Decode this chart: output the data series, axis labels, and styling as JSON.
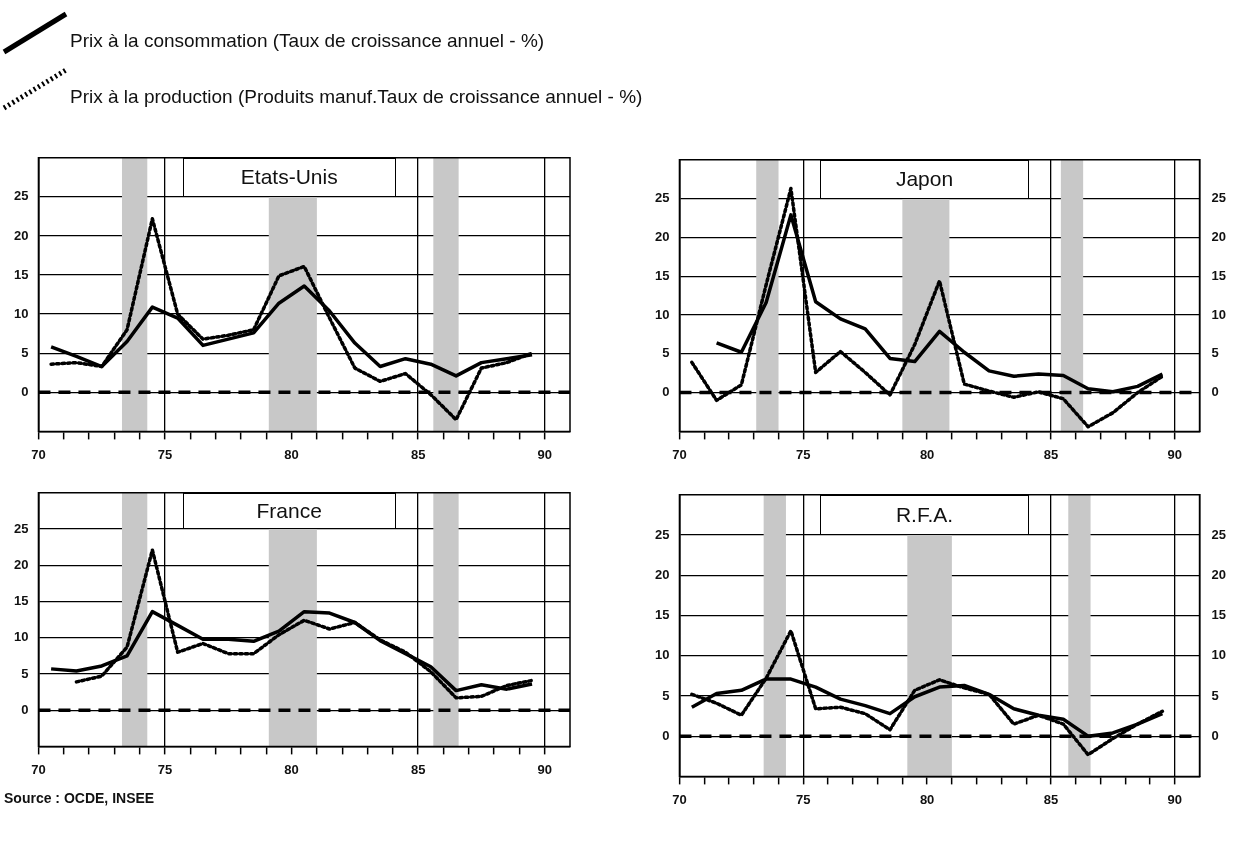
{
  "chart_data": [
    {
      "type": "line",
      "title": "Etats-Unis",
      "legend": "top",
      "grid": true,
      "x": [
        70.5,
        71.5,
        72.5,
        73.5,
        74.5,
        75.5,
        76.5,
        77.5,
        78.5,
        79.5,
        80.5,
        81.5,
        82.5,
        83.5,
        84.5,
        85.5,
        86.5,
        87.5,
        88.5,
        89.5
      ],
      "xlim": [
        70,
        91
      ],
      "xticks": [
        70,
        {
          "value": 71,
          "label": null
        },
        {
          "value": 72,
          "label": null
        },
        {
          "value": 73,
          "label": null
        },
        {
          "value": 74,
          "label": null
        },
        75,
        {
          "value": 76,
          "label": null
        },
        {
          "value": 77,
          "label": null
        },
        {
          "value": 78,
          "label": null
        },
        {
          "value": 79,
          "label": null
        },
        80,
        {
          "value": 81,
          "label": null
        },
        {
          "value": 82,
          "label": null
        },
        {
          "value": 83,
          "label": null
        },
        {
          "value": 84,
          "label": null
        },
        85,
        {
          "value": 86,
          "label": null
        },
        {
          "value": 87,
          "label": null
        },
        {
          "value": 88,
          "label": null
        },
        {
          "value": 89,
          "label": null
        },
        90
      ],
      "ylim": [
        -5,
        30
      ],
      "yticks": [
        0,
        5,
        10,
        15,
        20,
        25
      ],
      "ref_lines": [
        {
          "axis": "y",
          "value": 0,
          "color": "#000000",
          "line_style": "dashed"
        }
      ],
      "bands": [
        {
          "axis": "x",
          "from": 73.3,
          "to": 74.3,
          "color": "#c8c8c8"
        },
        {
          "axis": "x",
          "from": 79.1,
          "to": 81.0,
          "color": "#c8c8c8"
        },
        {
          "axis": "x",
          "from": 85.6,
          "to": 86.6,
          "color": "#c8c8c8"
        }
      ],
      "series": [
        {
          "name": "Prix à la consommation (Taux de croissance annuel - %)",
          "color": "#000000",
          "line_style": "solid",
          "values": [
            5.8,
            4.6,
            3.3,
            6.5,
            10.9,
            9.5,
            6.0,
            6.8,
            7.6,
            11.4,
            13.6,
            10.4,
            6.3,
            3.3,
            4.3,
            3.6,
            2.1,
            3.8,
            4.3,
            4.8
          ]
        },
        {
          "name": "Prix à la production (Produits manuf.Taux de croissance annuel - %)",
          "color": "#000000",
          "line_style": "dotted",
          "values": [
            3.6,
            3.8,
            3.3,
            8.0,
            22.2,
            10.0,
            6.8,
            7.3,
            8.0,
            14.9,
            16.1,
            9.5,
            3.1,
            1.4,
            2.4,
            -0.3,
            -3.5,
            3.1,
            3.8,
            5.0
          ]
        }
      ]
    },
    {
      "type": "line",
      "title": "Japon",
      "grid": true,
      "x": [
        70.5,
        71.5,
        72.5,
        73.5,
        74.5,
        75.5,
        76.5,
        77.5,
        78.5,
        79.5,
        80.5,
        81.5,
        82.5,
        83.5,
        84.5,
        85.5,
        86.5,
        87.5,
        88.5,
        89.5
      ],
      "xlim": [
        70,
        91
      ],
      "xticks": [
        70,
        {
          "value": 71,
          "label": null
        },
        {
          "value": 72,
          "label": null
        },
        {
          "value": 73,
          "label": null
        },
        {
          "value": 74,
          "label": null
        },
        75,
        {
          "value": 76,
          "label": null
        },
        {
          "value": 77,
          "label": null
        },
        {
          "value": 78,
          "label": null
        },
        {
          "value": 79,
          "label": null
        },
        80,
        {
          "value": 81,
          "label": null
        },
        {
          "value": 82,
          "label": null
        },
        {
          "value": 83,
          "label": null
        },
        {
          "value": 84,
          "label": null
        },
        85,
        {
          "value": 86,
          "label": null
        },
        {
          "value": 87,
          "label": null
        },
        {
          "value": 88,
          "label": null
        },
        {
          "value": 89,
          "label": null
        },
        90
      ],
      "ylim": [
        -5,
        30
      ],
      "yticks": [
        0,
        5,
        10,
        15,
        20,
        25
      ],
      "y2lim": [
        -5,
        30
      ],
      "y2ticks": [
        0,
        5,
        10,
        15,
        20,
        25
      ],
      "ref_lines": [
        {
          "axis": "y",
          "value": 0,
          "color": "#000000",
          "line_style": "dashed"
        }
      ],
      "bands": [
        {
          "axis": "x",
          "from": 73.1,
          "to": 74.0,
          "color": "#c8c8c8"
        },
        {
          "axis": "x",
          "from": 79.0,
          "to": 80.9,
          "color": "#c8c8c8"
        },
        {
          "axis": "x",
          "from": 85.4,
          "to": 86.3,
          "color": "#c8c8c8"
        }
      ],
      "series": [
        {
          "color": "#000000",
          "line_style": "solid",
          "values": [
            null,
            6.4,
            5.2,
            11.6,
            22.9,
            11.7,
            9.5,
            8.2,
            4.4,
            4.0,
            7.9,
            5.2,
            2.8,
            2.1,
            2.4,
            2.2,
            0.5,
            0.1,
            0.8,
            2.4
          ]
        },
        {
          "color": "#000000",
          "line_style": "dotted",
          "values": [
            3.9,
            -1.0,
            1.0,
            13.9,
            26.3,
            2.6,
            5.3,
            2.6,
            -0.3,
            6.2,
            14.4,
            1.1,
            0.2,
            -0.6,
            0.1,
            -0.8,
            -4.4,
            -2.6,
            0,
            2.1
          ]
        }
      ]
    },
    {
      "type": "line",
      "title": "France",
      "grid": true,
      "x": [
        70.5,
        71.5,
        72.5,
        73.5,
        74.5,
        75.5,
        76.5,
        77.5,
        78.5,
        79.5,
        80.5,
        81.5,
        82.5,
        83.5,
        84.5,
        85.5,
        86.5,
        87.5,
        88.5,
        89.5
      ],
      "xlim": [
        70,
        91
      ],
      "xticks": [
        70,
        {
          "value": 71,
          "label": null
        },
        {
          "value": 72,
          "label": null
        },
        {
          "value": 73,
          "label": null
        },
        {
          "value": 74,
          "label": null
        },
        75,
        {
          "value": 76,
          "label": null
        },
        {
          "value": 77,
          "label": null
        },
        {
          "value": 78,
          "label": null
        },
        {
          "value": 79,
          "label": null
        },
        80,
        {
          "value": 81,
          "label": null
        },
        {
          "value": 82,
          "label": null
        },
        {
          "value": 83,
          "label": null
        },
        {
          "value": 84,
          "label": null
        },
        85,
        {
          "value": 86,
          "label": null
        },
        {
          "value": 87,
          "label": null
        },
        {
          "value": 88,
          "label": null
        },
        {
          "value": 89,
          "label": null
        },
        90
      ],
      "ylim": [
        -5,
        30
      ],
      "yticks": [
        0,
        5,
        10,
        15,
        20,
        25
      ],
      "ref_lines": [
        {
          "axis": "y",
          "value": 0,
          "color": "#000000",
          "line_style": "dashed"
        }
      ],
      "bands": [
        {
          "axis": "x",
          "from": 73.3,
          "to": 74.3,
          "color": "#c8c8c8"
        },
        {
          "axis": "x",
          "from": 79.1,
          "to": 81.0,
          "color": "#c8c8c8"
        },
        {
          "axis": "x",
          "from": 85.6,
          "to": 86.6,
          "color": "#c8c8c8"
        }
      ],
      "annotations": [
        "Source : OCDE, INSEE"
      ],
      "series": [
        {
          "color": "#000000",
          "line_style": "solid",
          "values": [
            5.7,
            5.4,
            6.1,
            7.5,
            13.6,
            11.7,
            9.8,
            9.8,
            9.5,
            10.9,
            13.6,
            13.4,
            12.1,
            9.6,
            7.8,
            6.0,
            2.7,
            3.5,
            2.9,
            3.6
          ]
        },
        {
          "color": "#000000",
          "line_style": "dotted",
          "values": [
            null,
            3.9,
            4.7,
            8.7,
            22.1,
            8.0,
            9.2,
            7.8,
            7.8,
            10.4,
            12.4,
            11.2,
            12.1,
            9.7,
            8.0,
            5.3,
            1.7,
            1.9,
            3.4,
            4.1
          ]
        }
      ]
    },
    {
      "type": "line",
      "title": "R.F.A.",
      "grid": true,
      "x": [
        70.5,
        71.5,
        72.5,
        73.5,
        74.5,
        75.5,
        76.5,
        77.5,
        78.5,
        79.5,
        80.5,
        81.5,
        82.5,
        83.5,
        84.5,
        85.5,
        86.5,
        87.5,
        88.5,
        89.5
      ],
      "xlim": [
        70,
        91
      ],
      "xticks": [
        70,
        {
          "value": 71,
          "label": null
        },
        {
          "value": 72,
          "label": null
        },
        {
          "value": 73,
          "label": null
        },
        {
          "value": 74,
          "label": null
        },
        75,
        {
          "value": 76,
          "label": null
        },
        {
          "value": 77,
          "label": null
        },
        {
          "value": 78,
          "label": null
        },
        {
          "value": 79,
          "label": null
        },
        80,
        {
          "value": 81,
          "label": null
        },
        {
          "value": 82,
          "label": null
        },
        {
          "value": 83,
          "label": null
        },
        {
          "value": 84,
          "label": null
        },
        85,
        {
          "value": 86,
          "label": null
        },
        {
          "value": 87,
          "label": null
        },
        {
          "value": 88,
          "label": null
        },
        {
          "value": 89,
          "label": null
        },
        90
      ],
      "ylim": [
        -5,
        30
      ],
      "yticks": [
        0,
        5,
        10,
        15,
        20,
        25
      ],
      "y2lim": [
        -5,
        30
      ],
      "y2ticks": [
        0,
        5,
        10,
        15,
        20,
        25
      ],
      "ref_lines": [
        {
          "axis": "y",
          "value": 0,
          "color": "#000000",
          "line_style": "dashed"
        }
      ],
      "bands": [
        {
          "axis": "x",
          "from": 73.4,
          "to": 74.3,
          "color": "#c8c8c8"
        },
        {
          "axis": "x",
          "from": 79.2,
          "to": 81.0,
          "color": "#c8c8c8"
        },
        {
          "axis": "x",
          "from": 85.7,
          "to": 86.6,
          "color": "#c8c8c8"
        }
      ],
      "series": [
        {
          "color": "#000000",
          "line_style": "solid",
          "values": [
            3.6,
            5.3,
            5.7,
            7.1,
            7.1,
            6.1,
            4.6,
            3.8,
            2.8,
            4.9,
            6.1,
            6.3,
            5.2,
            3.4,
            2.6,
            2.1,
            0,
            0.4,
            1.5,
            2.8
          ]
        },
        {
          "color": "#000000",
          "line_style": "dotted",
          "values": [
            5.2,
            4.1,
            2.6,
            7.2,
            13.1,
            3.4,
            3.6,
            2.8,
            0.8,
            5.7,
            7.0,
            6.0,
            5.2,
            1.5,
            2.6,
            1.5,
            -2.3,
            -0.3,
            1.5,
            3.1
          ]
        }
      ]
    }
  ]
}
